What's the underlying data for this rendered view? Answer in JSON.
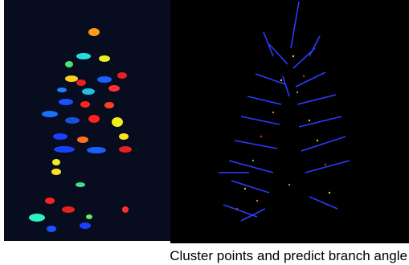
{
  "caption": "Cluster points and predict branch angle"
}
